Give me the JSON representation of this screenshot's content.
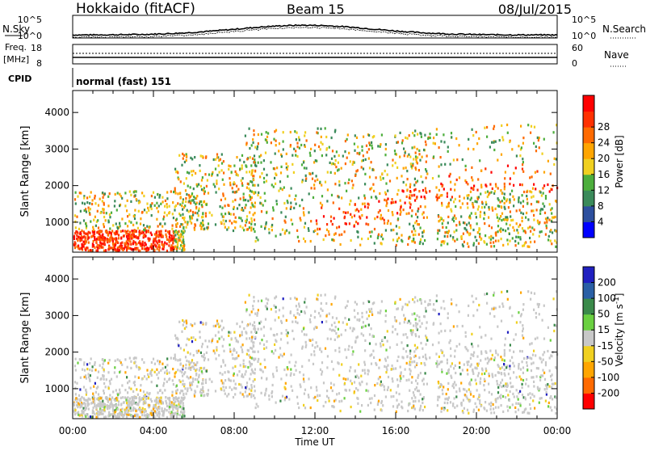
{
  "header": {
    "station": "Hokkaido (fitACF)",
    "beam": "Beam 15",
    "date": "08/Jul/2015"
  },
  "aux": {
    "nsky_label": "N.Sky",
    "nsearch_label": "N.Search",
    "freq_label": "Freq.",
    "freq_unit": "[MHz]",
    "nave_label": "Nave",
    "cpid_label": "CPID",
    "cpid_value": "normal (fast) 151",
    "noise_tick_hi": "10^5",
    "noise_tick_lo": "10^0",
    "freq_tick_hi": "18",
    "freq_tick_lo": "8",
    "nave_tick_hi": "60",
    "nave_tick_lo": "0"
  },
  "colors": {
    "power": [
      "#0000ff",
      "#2d4f9e",
      "#3a8a5a",
      "#4cae3c",
      "#f0d020",
      "#ffa500",
      "#ff6a00",
      "#ff3000",
      "#ff0000"
    ],
    "velocity": [
      "#2020c0",
      "#2a5fa5",
      "#3a8a4a",
      "#6ad040",
      "#c8c8c8",
      "#f0d020",
      "#ffa500",
      "#ff6a00",
      "#ff0000"
    ],
    "scatter_gray": "#c8c8c8"
  },
  "chart_data": [
    {
      "type": "heatmap",
      "title": "",
      "xlabel": "Time UT",
      "ylabel": "Slant Range [km]",
      "xlim": [
        "00:00",
        "24:00"
      ],
      "ylim": [
        180,
        4600
      ],
      "x_ticks": [
        "00:00",
        "04:00",
        "08:00",
        "12:00",
        "16:00",
        "20:00",
        "00:00"
      ],
      "y_ticks": [
        "1000",
        "2000",
        "3000",
        "4000"
      ],
      "colorbar": {
        "label": "Power [dB]",
        "range": [
          0,
          32
        ],
        "ticks": [
          "4",
          "8",
          "12",
          "16",
          "20",
          "24",
          "28"
        ]
      }
    },
    {
      "type": "heatmap",
      "title": "",
      "xlabel": "Time UT",
      "ylabel": "Slant Range [km]",
      "xlim": [
        "00:00",
        "24:00"
      ],
      "ylim": [
        180,
        4600
      ],
      "x_ticks": [
        "00:00",
        "04:00",
        "08:00",
        "12:00",
        "16:00",
        "20:00",
        "00:00"
      ],
      "y_ticks": [
        "1000",
        "2000",
        "3000",
        "4000"
      ],
      "colorbar": {
        "label": "Velocity [m s^-1]",
        "ticks": [
          "200",
          "100",
          "50",
          "15",
          "-15",
          "-50",
          "-100",
          "-200"
        ]
      }
    }
  ]
}
